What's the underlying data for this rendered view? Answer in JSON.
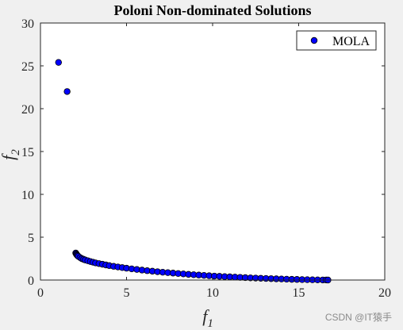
{
  "chart_data": {
    "type": "scatter",
    "title": "Poloni Non-dominated Solutions",
    "xlabel": "f",
    "xlabel_sub": "1",
    "ylabel": "f",
    "ylabel_sub": "2",
    "xlim": [
      0,
      20
    ],
    "ylim": [
      0,
      30
    ],
    "xticks": [
      0,
      5,
      10,
      15,
      20
    ],
    "yticks": [
      0,
      5,
      10,
      15,
      20,
      25,
      30
    ],
    "grid": false,
    "legend_position": "top-right",
    "series": [
      {
        "name": "MOLA",
        "marker": "circle",
        "color": "#0000ff",
        "edge_color": "#000000",
        "points": [
          [
            1.05,
            25.4
          ],
          [
            1.55,
            22.0
          ],
          [
            2.05,
            3.15
          ],
          [
            2.08,
            3.05
          ],
          [
            2.1,
            2.98
          ],
          [
            2.13,
            2.9
          ],
          [
            2.16,
            2.84
          ],
          [
            2.2,
            2.76
          ],
          [
            2.3,
            2.62
          ],
          [
            2.4,
            2.5
          ],
          [
            2.5,
            2.42
          ],
          [
            2.6,
            2.34
          ],
          [
            2.75,
            2.25
          ],
          [
            2.9,
            2.16
          ],
          [
            3.05,
            2.08
          ],
          [
            3.2,
            2.0
          ],
          [
            3.4,
            1.92
          ],
          [
            3.6,
            1.84
          ],
          [
            3.8,
            1.76
          ],
          [
            4.0,
            1.68
          ],
          [
            4.25,
            1.6
          ],
          [
            4.5,
            1.52
          ],
          [
            4.75,
            1.45
          ],
          [
            5.0,
            1.38
          ],
          [
            5.3,
            1.3
          ],
          [
            5.6,
            1.23
          ],
          [
            5.9,
            1.16
          ],
          [
            6.2,
            1.09
          ],
          [
            6.5,
            1.03
          ],
          [
            6.8,
            0.97
          ],
          [
            7.1,
            0.91
          ],
          [
            7.4,
            0.86
          ],
          [
            7.7,
            0.81
          ],
          [
            8.0,
            0.76
          ],
          [
            8.3,
            0.71
          ],
          [
            8.6,
            0.66
          ],
          [
            8.9,
            0.62
          ],
          [
            9.2,
            0.58
          ],
          [
            9.5,
            0.54
          ],
          [
            9.8,
            0.5
          ],
          [
            10.1,
            0.46
          ],
          [
            10.4,
            0.43
          ],
          [
            10.7,
            0.4
          ],
          [
            11.0,
            0.37
          ],
          [
            11.3,
            0.34
          ],
          [
            11.6,
            0.31
          ],
          [
            11.9,
            0.28
          ],
          [
            12.2,
            0.25
          ],
          [
            12.5,
            0.23
          ],
          [
            12.8,
            0.2
          ],
          [
            13.1,
            0.18
          ],
          [
            13.4,
            0.16
          ],
          [
            13.7,
            0.14
          ],
          [
            14.0,
            0.12
          ],
          [
            14.3,
            0.1
          ],
          [
            14.6,
            0.08
          ],
          [
            14.9,
            0.07
          ],
          [
            15.2,
            0.05
          ],
          [
            15.5,
            0.04
          ],
          [
            15.8,
            0.03
          ],
          [
            16.1,
            0.02
          ],
          [
            16.4,
            0.01
          ],
          [
            16.6,
            0.01
          ],
          [
            16.7,
            0.0
          ]
        ]
      }
    ]
  },
  "watermark": "CSDN @IT猿手"
}
